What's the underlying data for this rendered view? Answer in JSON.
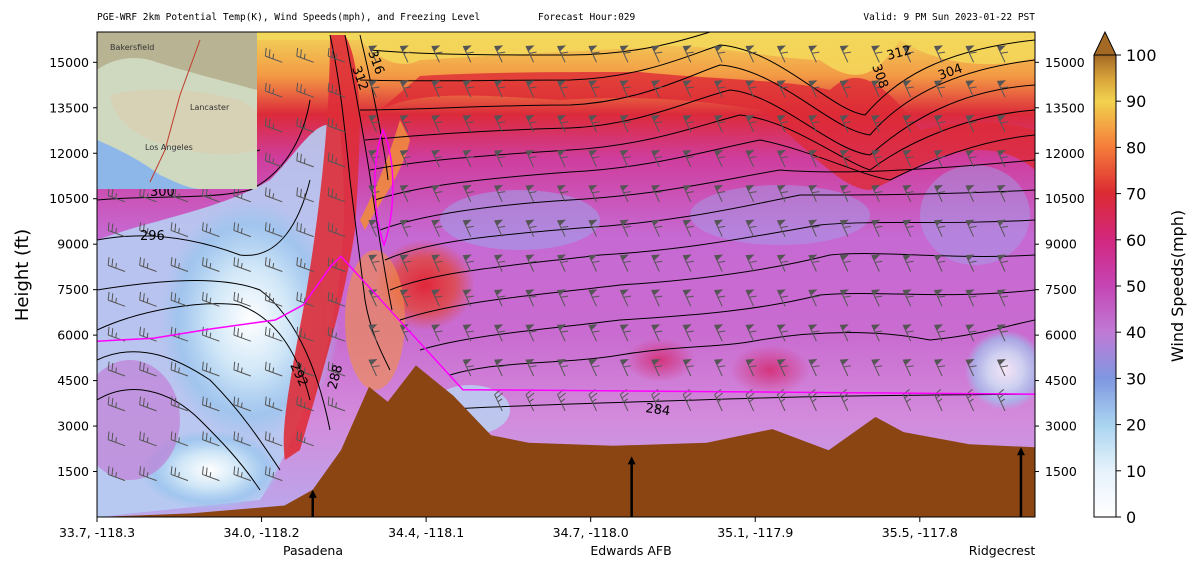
{
  "header": {
    "title": "PGE-WRF 2km Potential Temp(K), Wind Speeds(mph), and Freezing Level",
    "forecast_hour": "Forecast Hour:029",
    "valid": "Valid:  9 PM Sun 2023-01-22 PST"
  },
  "colors": {
    "terrain": "#8B4513",
    "freezing_level": "#ff00ff",
    "contour": "#000000",
    "barb": "#555555"
  },
  "chart_data": {
    "type": "heatmap",
    "title": "PGE-WRF 2km Potential Temp(K), Wind Speeds(mph), and Freezing Level",
    "ylabel": "Height (ft)",
    "ylim": [
      0,
      16000
    ],
    "yticks": [
      "1500",
      "3000",
      "4500",
      "6000",
      "7500",
      "9000",
      "10500",
      "12000",
      "13500",
      "15000"
    ],
    "x_ticks": [
      "33.7, -118.3",
      "34.0, -118.2",
      "34.4, -118.1",
      "34.7, -118.0",
      "35.1, -117.9",
      "35.5, -117.8"
    ],
    "locations": [
      "Pasadena",
      "Edwards AFB",
      "Ridgecrest"
    ],
    "colorbar": {
      "label": "Wind Speeds(mph)",
      "ticks": [
        "0",
        "10",
        "20",
        "30",
        "40",
        "50",
        "60",
        "70",
        "80",
        "90",
        "100"
      ],
      "range": [
        0,
        100
      ],
      "extend": "max"
    },
    "contour_labels": [
      "284",
      "288",
      "292",
      "296",
      "300",
      "304",
      "308",
      "312",
      "316",
      "312"
    ],
    "terrain_profile_ft": [
      [
        0,
        0
      ],
      [
        0.1,
        120
      ],
      [
        0.2,
        380
      ],
      [
        0.23,
        900
      ],
      [
        0.26,
        2200
      ],
      [
        0.29,
        4300
      ],
      [
        0.31,
        3800
      ],
      [
        0.34,
        5000
      ],
      [
        0.38,
        4000
      ],
      [
        0.42,
        2700
      ],
      [
        0.46,
        2450
      ],
      [
        0.55,
        2350
      ],
      [
        0.65,
        2450
      ],
      [
        0.72,
        2900
      ],
      [
        0.78,
        2200
      ],
      [
        0.83,
        3300
      ],
      [
        0.86,
        2800
      ],
      [
        0.93,
        2400
      ],
      [
        1.0,
        2300
      ]
    ],
    "freezing_level_ft": [
      [
        0,
        5800
      ],
      [
        0.06,
        5900
      ],
      [
        0.12,
        6200
      ],
      [
        0.19,
        6500
      ],
      [
        0.22,
        7000
      ],
      [
        0.25,
        8300
      ],
      [
        0.26,
        8600
      ],
      [
        0.39,
        4200
      ],
      [
        0.6,
        4150
      ],
      [
        0.8,
        4100
      ],
      [
        1.0,
        4050
      ]
    ],
    "markers": [
      {
        "location": "Pasadena",
        "x": 0.23,
        "top_ft": 900
      },
      {
        "location": "Edwards AFB",
        "x": 0.57,
        "top_ft": 2000
      },
      {
        "location": "Ridgecrest",
        "x": 0.985,
        "top_ft": 2300
      }
    ]
  }
}
